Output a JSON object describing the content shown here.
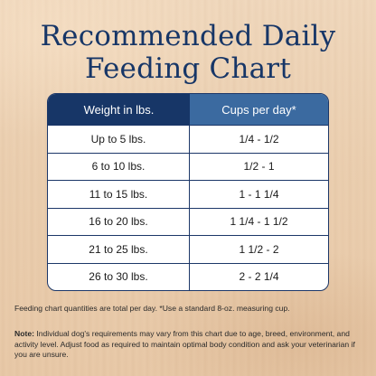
{
  "title": {
    "line1": "Recommended Daily",
    "line2": "Feeding Chart"
  },
  "table": {
    "headers": [
      "Weight in lbs.",
      "Cups per day*"
    ],
    "rows": [
      [
        "Up to 5 lbs.",
        "1/4 - 1/2"
      ],
      [
        "6 to 10 lbs.",
        "1/2 - 1"
      ],
      [
        "11 to 15 lbs.",
        "1 - 1 1/4"
      ],
      [
        "16 to 20 lbs.",
        "1 1/4 - 1 1/2"
      ],
      [
        "21 to 25 lbs.",
        "1 1/2 - 2"
      ],
      [
        "26 to 30 lbs.",
        "2 - 2 1/4"
      ]
    ]
  },
  "footnote": "Feeding chart quantities are total per day. *Use a standard 8-oz. measuring cup.",
  "note": {
    "label": "Note:",
    "text": " Individual dog's requirements may vary from this chart due to age, breed, environment, and activity level. Adjust food as required to maintain optimal body condition and ask your veterinarian if you are unsure."
  },
  "colors": {
    "navy": "#173667",
    "header_blue": "#3b6aa0",
    "background": "#ebcfb0"
  }
}
